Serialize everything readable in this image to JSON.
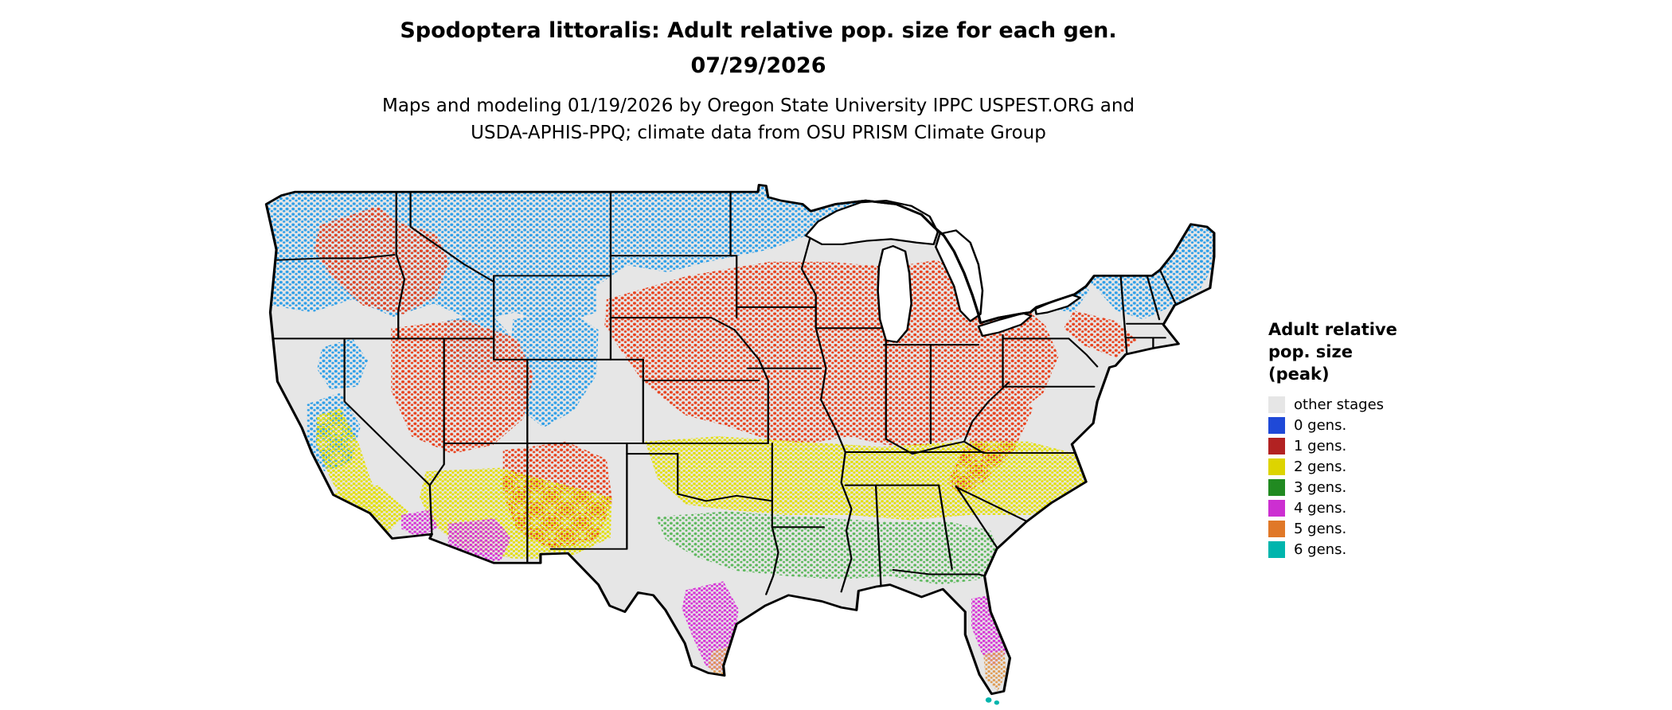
{
  "header": {
    "title_line1": "Spodoptera littoralis: Adult relative pop. size for each gen.",
    "title_line2": "07/29/2026",
    "subtitle_line1": "Maps and modeling 01/19/2026 by Oregon State University IPPC USPEST.ORG and",
    "subtitle_line2": "USDA-APHIS-PPQ; climate data from OSU PRISM Climate Group"
  },
  "legend": {
    "title_lines": [
      "Adult relative",
      "pop. size",
      "(peak)"
    ],
    "entries": [
      {
        "label": "other stages",
        "color": "#e6e6e6"
      },
      {
        "label": "0 gens.",
        "color": "#1f49d7"
      },
      {
        "label": "1 gens.",
        "color": "#b22222"
      },
      {
        "label": "2 gens.",
        "color": "#ddd400"
      },
      {
        "label": "3 gens.",
        "color": "#218a21"
      },
      {
        "label": "4 gens.",
        "color": "#cc2fd1"
      },
      {
        "label": "5 gens.",
        "color": "#e07828"
      },
      {
        "label": "6 gens.",
        "color": "#00b5ad"
      }
    ]
  },
  "map": {
    "land_color": "#e6e6e6",
    "water_color": "#ffffff",
    "border_color": "#000000",
    "speckle_palette": {
      "gens_0": "#2f9fe8",
      "gens_1": "#e8431f",
      "gens_2": "#e3de00",
      "gens_3": "#5cb85c",
      "gens_4": "#d633d6",
      "gens_5": "#e09a50",
      "gens_6": "#00b5ad"
    }
  }
}
